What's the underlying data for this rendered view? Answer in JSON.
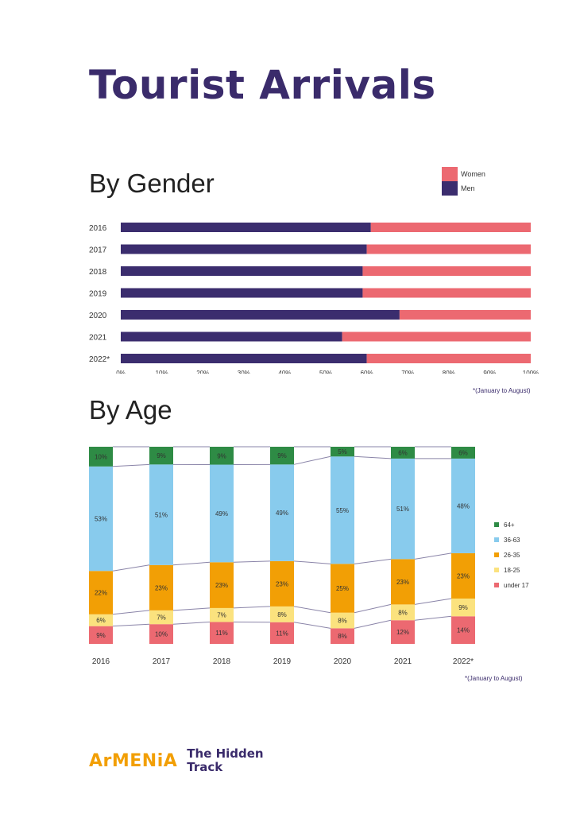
{
  "page": {
    "title": "Tourist Arrivals",
    "footnote_gender": "*(January to August)",
    "footnote_age": "*(January to August)",
    "brand": {
      "armenia": "ArMENiA",
      "tagline_line1": "The Hidden",
      "tagline_line2": "Track"
    }
  },
  "colors": {
    "men": "#3b2d6e",
    "women": "#ec6971",
    "age_64_plus": "#2e8b45",
    "age_36_63": "#88cbed",
    "age_26_35": "#f29f05",
    "age_18_25": "#fbe27e",
    "age_under_17": "#ec6971",
    "title": "#3a2b6b"
  },
  "chart_data": [
    {
      "type": "bar",
      "orientation": "horizontal",
      "stacked": true,
      "title": "By Gender",
      "categories": [
        "2016",
        "2017",
        "2018",
        "2019",
        "2020",
        "2021",
        "2022*"
      ],
      "series": [
        {
          "name": "Men",
          "values": [
            61,
            60,
            59,
            59,
            68,
            54,
            60
          ]
        },
        {
          "name": "Women",
          "values": [
            39,
            40,
            41,
            41,
            32,
            46,
            40
          ]
        }
      ],
      "xlim": [
        0,
        100
      ],
      "xticks": [
        "0%",
        "10%",
        "20%",
        "30%",
        "40%",
        "50%",
        "60%",
        "70%",
        "80%",
        "90%",
        "100%"
      ],
      "legend": [
        "Women",
        "Men"
      ],
      "legend_position": "top-right",
      "grid": false
    },
    {
      "type": "bar",
      "orientation": "vertical",
      "stacked": true,
      "title": "By Age",
      "categories": [
        "2016",
        "2017",
        "2018",
        "2019",
        "2020",
        "2021",
        "2022*"
      ],
      "series": [
        {
          "name": "under 17",
          "values": [
            9,
            10,
            11,
            11,
            8,
            12,
            14
          ]
        },
        {
          "name": "18-25",
          "values": [
            6,
            7,
            7,
            8,
            8,
            8,
            9
          ]
        },
        {
          "name": "26-35",
          "values": [
            22,
            23,
            23,
            23,
            25,
            23,
            23
          ]
        },
        {
          "name": "36-63",
          "values": [
            53,
            51,
            49,
            49,
            55,
            51,
            48
          ]
        },
        {
          "name": "64+",
          "values": [
            10,
            9,
            9,
            9,
            5,
            6,
            6
          ]
        }
      ],
      "labels_format": "{v}%",
      "legend": [
        "64+",
        "36-63",
        "26-35",
        "18-25",
        "under 17"
      ],
      "legend_position": "right",
      "connector_lines": true,
      "grid": false
    }
  ]
}
